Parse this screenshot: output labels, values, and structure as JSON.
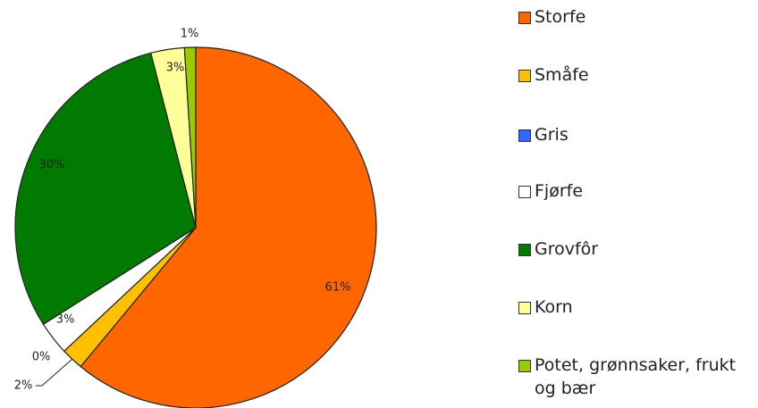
{
  "chart_data": {
    "type": "pie",
    "categories": [
      "Storfe",
      "Småfe",
      "Gris",
      "Fjørfe",
      "Grovfôr",
      "Korn",
      "Potet, grønnsaker, frukt og bær"
    ],
    "values": [
      61,
      2,
      0,
      3,
      30,
      3,
      1
    ],
    "value_labels": [
      "61%",
      "2%",
      "0%",
      "3%",
      "30%",
      "3%",
      "1%"
    ],
    "colors": [
      "#ff6600",
      "#ffc000",
      "#3366ff",
      "#ffffff",
      "#007a00",
      "#ffff99",
      "#99cc00"
    ],
    "legend": "right"
  }
}
